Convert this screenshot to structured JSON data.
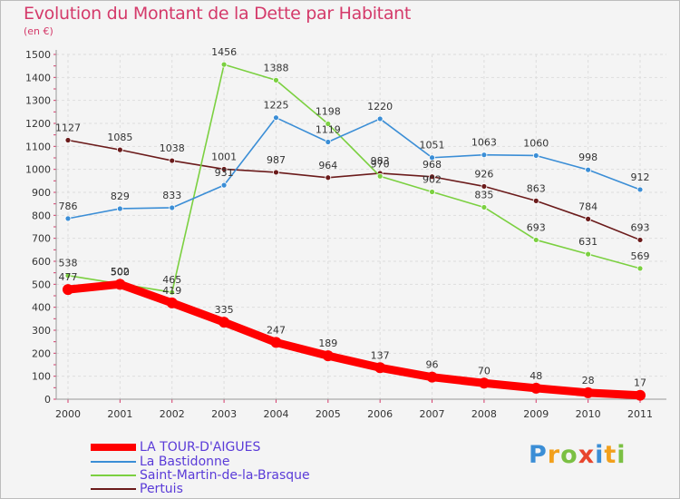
{
  "header": {
    "title": "Evolution du Montant de la Dette par Habitant",
    "subtitle": "(en €)"
  },
  "brand": {
    "letters": [
      "P",
      "r",
      "o",
      "x",
      "i",
      "t",
      "i"
    ],
    "colors": [
      "#3b8ed6",
      "#f2a01c",
      "#7bc043",
      "#e8452c",
      "#3b8ed6",
      "#f2a01c",
      "#7bc043"
    ]
  },
  "chart_data": {
    "type": "line",
    "title": "Evolution du Montant de la Dette par Habitant",
    "subtitle": "(en €)",
    "categories": [
      "2000",
      "2001",
      "2002",
      "2003",
      "2004",
      "2005",
      "2006",
      "2007",
      "2008",
      "2009",
      "2010",
      "2011"
    ],
    "ylim": [
      0,
      1500
    ],
    "yticks": [
      0,
      100,
      200,
      300,
      400,
      500,
      600,
      700,
      800,
      900,
      1000,
      1100,
      1200,
      1300,
      1400,
      1500
    ],
    "grid": true,
    "legend_position": "bottom-left",
    "series": [
      {
        "name": "LA TOUR-D'AIGUES",
        "color": "#ff0000",
        "values": [
          477,
          500,
          419,
          335,
          247,
          189,
          137,
          96,
          70,
          48,
          28,
          17
        ]
      },
      {
        "name": "La Bastidonne",
        "color": "#3b8ed6",
        "values": [
          786,
          829,
          833,
          931,
          1225,
          1119,
          1220,
          1051,
          1063,
          1060,
          998,
          912
        ]
      },
      {
        "name": "Saint-Martin-de-la-Brasque",
        "color": "#7bd040",
        "values": [
          538,
          502,
          465,
          1456,
          1388,
          1198,
          970,
          902,
          835,
          693,
          631,
          569
        ]
      },
      {
        "name": "Pertuis",
        "color": "#6b1b1b",
        "values": [
          1127,
          1085,
          1038,
          1001,
          987,
          964,
          983,
          968,
          926,
          863,
          784,
          693
        ]
      }
    ]
  }
}
